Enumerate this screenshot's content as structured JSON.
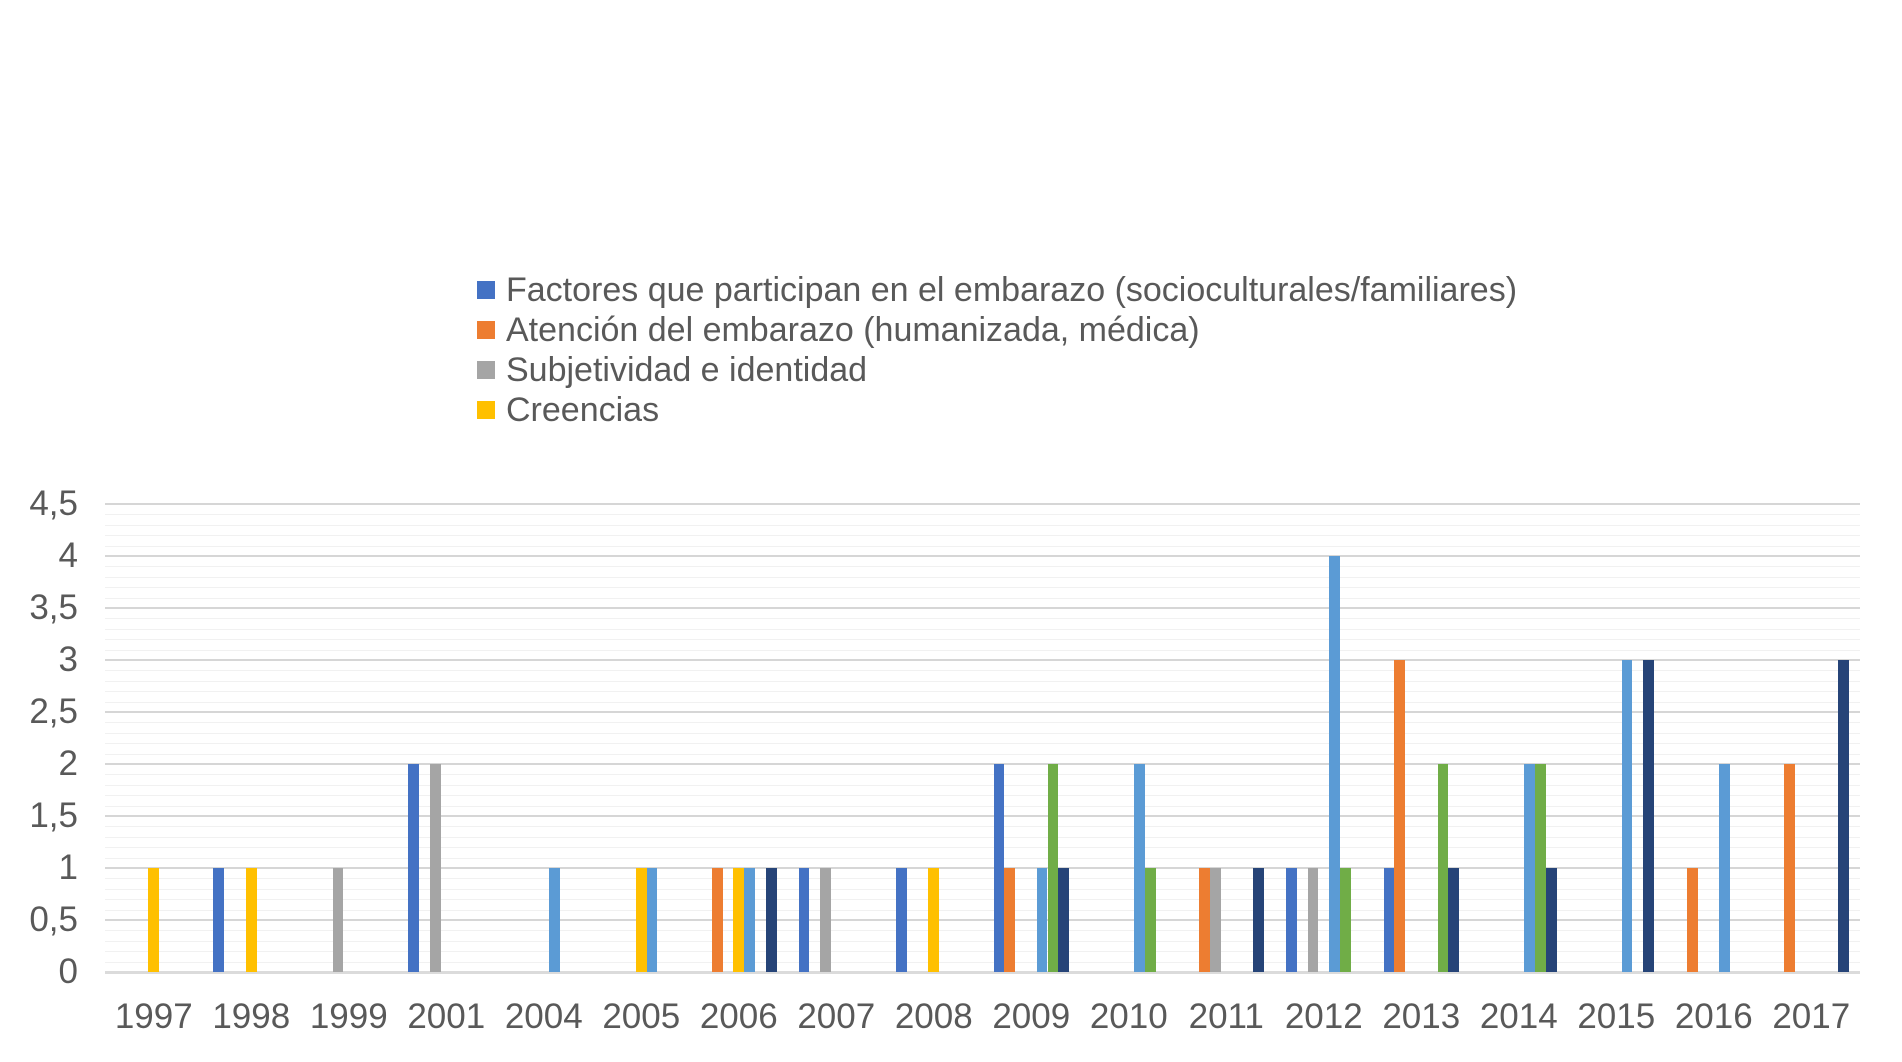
{
  "chart_data": {
    "type": "bar",
    "title": "",
    "categories": [
      "1997",
      "1998",
      "1999",
      "2001",
      "2004",
      "2005",
      "2006",
      "2007",
      "2008",
      "2009",
      "2010",
      "2011",
      "2012",
      "2013",
      "2014",
      "2015",
      "2016",
      "2017"
    ],
    "series": [
      {
        "name": "Factores que participan en el embarazo (socioculturales/familiares)",
        "color": "#4472C4",
        "in_legend": true,
        "values": [
          0,
          1,
          0,
          2,
          0,
          0,
          0,
          1,
          1,
          2,
          0,
          0,
          1,
          1,
          0,
          0,
          0,
          0
        ]
      },
      {
        "name": "Atención del embarazo (humanizada, médica)",
        "color": "#ED7D31",
        "in_legend": true,
        "values": [
          0,
          0,
          0,
          0,
          0,
          0,
          1,
          0,
          0,
          1,
          0,
          1,
          0,
          3,
          0,
          0,
          1,
          2
        ]
      },
      {
        "name": "Subjetividad e identidad",
        "color": "#A5A5A5",
        "in_legend": true,
        "values": [
          0,
          0,
          1,
          2,
          0,
          0,
          0,
          1,
          0,
          0,
          0,
          1,
          1,
          0,
          0,
          0,
          0,
          0
        ]
      },
      {
        "name": "Creencias",
        "color": "#FFC000",
        "in_legend": true,
        "values": [
          1,
          1,
          0,
          0,
          0,
          1,
          1,
          0,
          1,
          0,
          0,
          0,
          0,
          0,
          0,
          0,
          0,
          0
        ]
      },
      {
        "name": "",
        "color": "#5B9BD5",
        "in_legend": false,
        "values": [
          0,
          0,
          0,
          0,
          1,
          1,
          1,
          0,
          0,
          1,
          2,
          0,
          4,
          0,
          2,
          3,
          2,
          0
        ]
      },
      {
        "name": "",
        "color": "#70AD47",
        "in_legend": false,
        "values": [
          0,
          0,
          0,
          0,
          0,
          0,
          0,
          0,
          0,
          2,
          1,
          0,
          1,
          2,
          2,
          0,
          0,
          0
        ]
      },
      {
        "name": "",
        "color": "#264478",
        "in_legend": false,
        "values": [
          0,
          0,
          0,
          0,
          0,
          0,
          1,
          0,
          0,
          1,
          0,
          1,
          0,
          1,
          1,
          3,
          0,
          3
        ]
      }
    ],
    "y_axis": {
      "min": 0,
      "max": 4.5,
      "major_step": 0.5,
      "minor_step": 0.1,
      "tick_labels": [
        "0",
        "0,5",
        "1",
        "1,5",
        "2",
        "2,5",
        "3",
        "3,5",
        "4",
        "4,5"
      ],
      "decimal_separator": ","
    },
    "x_axis": {
      "tick_labels": [
        "1997",
        "1998",
        "1999",
        "2001",
        "2004",
        "2005",
        "2006",
        "2007",
        "2008",
        "2009",
        "2010",
        "2011",
        "2012",
        "2013",
        "2014",
        "2015",
        "2016",
        "2017"
      ]
    },
    "legend_position": "top-left-stacked",
    "grid": {
      "major_on": true,
      "minor_on": true,
      "major_color": "#D6D6D6",
      "minor_color": "#F1F1F1",
      "axis_line_color": "#DBDBDB"
    },
    "text_color": "#595959",
    "background_color": "#FFFFFF"
  }
}
